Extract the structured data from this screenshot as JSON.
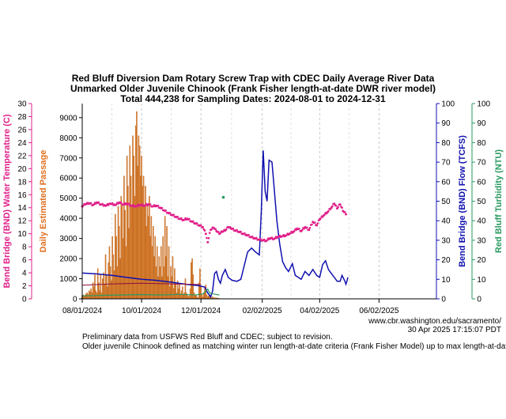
{
  "chart_data": {
    "type": "bar",
    "title": [
      "Red Bluff Diversion Dam Rotary Screw Trap with CDEC Daily Average River Data",
      "Unmarked Older Juvenile Chinook (Frank Fisher length-at-date DWR river model)",
      "Total 444,238 for Sampling Dates: 2024-08-01 to 2024-12-31"
    ],
    "x_tick_labels": [
      "08/01/2024",
      "10/01/2024",
      "12/01/2024",
      "02/02/2025",
      "04/02/2025",
      "06/02/2025"
    ],
    "x_range": [
      "2024-08-01",
      "2025-07-31"
    ],
    "axes": {
      "temperature": {
        "label": "Bend Bridge (BND) Water Temperature (C)",
        "range": [
          0,
          30
        ],
        "ticks": [
          0,
          2,
          4,
          6,
          8,
          10,
          12,
          14,
          16,
          18,
          20,
          22,
          24,
          26,
          28,
          30
        ],
        "color": "#e0208a"
      },
      "passage": {
        "label": "Daily Estimated Passage",
        "range": [
          0,
          9700
        ],
        "ticks": [
          0,
          1000,
          2000,
          3000,
          4000,
          5000,
          6000,
          7000,
          8000,
          9000
        ],
        "color": "#e07020"
      },
      "flow": {
        "label": "Bend Bridge (BND) Flow (TCFS)",
        "range": [
          0,
          100
        ],
        "ticks": [
          0,
          10,
          20,
          30,
          40,
          50,
          60,
          70,
          80,
          90,
          100
        ],
        "color": "#1010b0"
      },
      "turbidity": {
        "label": "Red Bluff Turbidity (NTU)",
        "range": [
          0,
          100
        ],
        "ticks": [
          0,
          10,
          20,
          30,
          40,
          50,
          60,
          70,
          80,
          90,
          100
        ],
        "color": "#2a9a60"
      }
    },
    "grid": true,
    "series": [
      {
        "name": "Daily Estimated Passage",
        "kind": "bar",
        "axis": "passage",
        "start_date": "2024-08-01",
        "values": [
          150,
          200,
          120,
          180,
          250,
          300,
          220,
          400,
          350,
          500,
          300,
          800,
          600,
          1200,
          400,
          300,
          1500,
          800,
          400,
          1200,
          300,
          1000,
          1300,
          700,
          2200,
          1200,
          600,
          1800,
          2600,
          1600,
          900,
          3100,
          2200,
          1400,
          4200,
          3100,
          1600,
          4600,
          3600,
          2000,
          5100,
          4700,
          3000,
          6100,
          4400,
          2600,
          7100,
          5600,
          3500,
          7600,
          6100,
          4600,
          8100,
          7100,
          5100,
          8600,
          9300,
          6600,
          8100,
          7600,
          6100,
          7100,
          5600,
          6100,
          4600,
          5600,
          3600,
          4600,
          4100,
          5100,
          3100,
          4100,
          2600,
          3600,
          2100,
          3100,
          1600,
          2600,
          1100,
          2100,
          1600,
          2600,
          1100,
          3100,
          1600,
          4100,
          2100,
          3600,
          1100,
          2600,
          600,
          1600,
          1100,
          2100,
          500,
          1500,
          800,
          300,
          900,
          500,
          700,
          250,
          400,
          600,
          200,
          300,
          1000,
          300,
          200,
          100,
          150,
          500,
          1800,
          2000,
          1200,
          300,
          150,
          200,
          100,
          50,
          800,
          1500,
          600,
          200,
          100,
          300,
          600,
          700,
          200,
          100,
          150,
          200,
          100,
          50,
          100,
          50,
          50,
          50,
          50,
          30,
          30,
          20,
          10
        ]
      },
      {
        "name": "Bend Bridge (BND) Water Temperature (C)",
        "kind": "points",
        "axis": "temperature",
        "points": [
          [
            "2024-08-01",
            14.2
          ],
          [
            "2024-08-04",
            14.5
          ],
          [
            "2024-08-08",
            14.7
          ],
          [
            "2024-08-12",
            14.4
          ],
          [
            "2024-08-16",
            14.8
          ],
          [
            "2024-08-20",
            14.5
          ],
          [
            "2024-08-25",
            14.3
          ],
          [
            "2024-08-30",
            14.6
          ],
          [
            "2024-09-04",
            14.4
          ],
          [
            "2024-09-08",
            14.8
          ],
          [
            "2024-09-12",
            14.5
          ],
          [
            "2024-09-16",
            14.6
          ],
          [
            "2024-09-20",
            14.3
          ],
          [
            "2024-09-25",
            14.2
          ],
          [
            "2024-09-30",
            14.4
          ],
          [
            "2024-10-04",
            14.3
          ],
          [
            "2024-10-08",
            14.5
          ],
          [
            "2024-10-12",
            14.2
          ],
          [
            "2024-10-16",
            14.3
          ],
          [
            "2024-10-20",
            14.0
          ],
          [
            "2024-10-24",
            13.6
          ],
          [
            "2024-10-28",
            13.2
          ],
          [
            "2024-11-01",
            12.9
          ],
          [
            "2024-11-05",
            12.6
          ],
          [
            "2024-11-09",
            12.3
          ],
          [
            "2024-11-13",
            12.1
          ],
          [
            "2024-11-17",
            12.3
          ],
          [
            "2024-11-21",
            11.9
          ],
          [
            "2024-11-25",
            11.6
          ],
          [
            "2024-11-29",
            11.3
          ],
          [
            "2024-12-03",
            11.0
          ],
          [
            "2024-12-06",
            10.0
          ],
          [
            "2024-12-08",
            8.7
          ],
          [
            "2024-12-11",
            10.6
          ],
          [
            "2024-12-14",
            10.9
          ],
          [
            "2024-12-17",
            10.4
          ],
          [
            "2024-12-20",
            10.0
          ],
          [
            "2024-12-23",
            10.3
          ],
          [
            "2024-12-26",
            10.5
          ],
          [
            "2024-12-29",
            11.0
          ],
          [
            "2025-01-01",
            10.8
          ],
          [
            "2025-01-05",
            10.5
          ],
          [
            "2025-01-09",
            10.3
          ],
          [
            "2025-01-13",
            10.0
          ],
          [
            "2025-01-17",
            9.8
          ],
          [
            "2025-01-21",
            9.5
          ],
          [
            "2025-01-25",
            9.3
          ],
          [
            "2025-01-29",
            9.1
          ],
          [
            "2025-02-02",
            9.0
          ],
          [
            "2025-02-06",
            8.9
          ],
          [
            "2025-02-10",
            9.3
          ],
          [
            "2025-02-14",
            9.2
          ],
          [
            "2025-02-18",
            9.5
          ],
          [
            "2025-02-22",
            9.6
          ],
          [
            "2025-02-26",
            9.7
          ],
          [
            "2025-03-02",
            10.0
          ],
          [
            "2025-03-06",
            10.3
          ],
          [
            "2025-03-10",
            10.8
          ],
          [
            "2025-03-14",
            10.4
          ],
          [
            "2025-03-18",
            11.0
          ],
          [
            "2025-03-22",
            10.6
          ],
          [
            "2025-03-26",
            11.8
          ],
          [
            "2025-03-30",
            11.3
          ],
          [
            "2025-04-02",
            12.2
          ],
          [
            "2025-04-06",
            12.8
          ],
          [
            "2025-04-10",
            13.3
          ],
          [
            "2025-04-14",
            14.0
          ],
          [
            "2025-04-17",
            14.6
          ],
          [
            "2025-04-20",
            13.9
          ],
          [
            "2025-04-23",
            14.5
          ],
          [
            "2025-04-26",
            13.5
          ],
          [
            "2025-04-29",
            13.0
          ]
        ]
      },
      {
        "name": "Bend Bridge (BND) Flow (TCFS)",
        "kind": "line",
        "axis": "flow",
        "points": [
          [
            "2024-08-01",
            13.2
          ],
          [
            "2024-08-15",
            12.8
          ],
          [
            "2024-09-01",
            12.0
          ],
          [
            "2024-09-15",
            11.0
          ],
          [
            "2024-10-01",
            10.0
          ],
          [
            "2024-10-15",
            9.5
          ],
          [
            "2024-11-01",
            8.5
          ],
          [
            "2024-11-15",
            7.5
          ],
          [
            "2024-11-28",
            6.8
          ],
          [
            "2024-12-05",
            6.0
          ],
          [
            "2024-12-08",
            3.0
          ],
          [
            "2024-12-11",
            1.0
          ],
          [
            "2024-12-13",
            4.0
          ],
          [
            "2024-12-15",
            13.0
          ],
          [
            "2024-12-17",
            14.0
          ],
          [
            "2024-12-19",
            10.0
          ],
          [
            "2024-12-21",
            8.0
          ],
          [
            "2024-12-23",
            12.0
          ],
          [
            "2024-12-26",
            15.0
          ],
          [
            "2024-12-29",
            11.0
          ],
          [
            "2025-01-02",
            9.5
          ],
          [
            "2025-01-07",
            9.0
          ],
          [
            "2025-01-11",
            10.0
          ],
          [
            "2025-01-14",
            16.0
          ],
          [
            "2025-01-18",
            24.0
          ],
          [
            "2025-01-22",
            26.0
          ],
          [
            "2025-01-26",
            24.0
          ],
          [
            "2025-01-30",
            22.5
          ],
          [
            "2025-02-01",
            45.0
          ],
          [
            "2025-02-03",
            76.0
          ],
          [
            "2025-02-05",
            55.0
          ],
          [
            "2025-02-07",
            50.0
          ],
          [
            "2025-02-09",
            71.0
          ],
          [
            "2025-02-12",
            70.0
          ],
          [
            "2025-02-14",
            58.0
          ],
          [
            "2025-02-17",
            40.0
          ],
          [
            "2025-02-20",
            28.0
          ],
          [
            "2025-02-23",
            19.0
          ],
          [
            "2025-02-26",
            16.0
          ],
          [
            "2025-03-01",
            14.0
          ],
          [
            "2025-03-05",
            18.0
          ],
          [
            "2025-03-08",
            12.0
          ],
          [
            "2025-03-11",
            11.0
          ],
          [
            "2025-03-14",
            10.0
          ],
          [
            "2025-03-18",
            14.0
          ],
          [
            "2025-03-22",
            12.0
          ],
          [
            "2025-03-26",
            15.0
          ],
          [
            "2025-03-30",
            12.0
          ],
          [
            "2025-04-02",
            11.0
          ],
          [
            "2025-04-05",
            17.5
          ],
          [
            "2025-04-08",
            19.5
          ],
          [
            "2025-04-11",
            15.0
          ],
          [
            "2025-04-14",
            13.0
          ],
          [
            "2025-04-17",
            11.0
          ],
          [
            "2025-04-20",
            9.0
          ],
          [
            "2025-04-23",
            9.0
          ],
          [
            "2025-04-25",
            12.0
          ],
          [
            "2025-04-28",
            9.0
          ],
          [
            "2025-04-29",
            7.5
          ],
          [
            "2025-04-30",
            9.0
          ],
          [
            "2025-05-01",
            11.0
          ]
        ]
      },
      {
        "name": "Red Bluff Turbidity (NTU)",
        "kind": "line",
        "axis": "turbidity",
        "points": [
          [
            "2024-08-01",
            1.5
          ],
          [
            "2024-08-20",
            1.8
          ],
          [
            "2024-09-10",
            2.0
          ],
          [
            "2024-09-30",
            2.2
          ],
          [
            "2024-10-20",
            2.0
          ],
          [
            "2024-11-10",
            2.3
          ],
          [
            "2024-11-25",
            2.0
          ],
          [
            "2024-12-03",
            2.5
          ],
          [
            "2024-12-08",
            5.0
          ],
          [
            "2024-12-10",
            3.0
          ],
          [
            "2024-12-14",
            2.5
          ],
          [
            "2024-12-20",
            2.0
          ]
        ]
      },
      {
        "name": "Temperature (secondary)",
        "kind": "line",
        "axis": "temperature",
        "points": [
          [
            "2024-08-01",
            2.1
          ],
          [
            "2024-09-01",
            2.3
          ],
          [
            "2024-10-01",
            2.4
          ],
          [
            "2024-11-01",
            2.3
          ],
          [
            "2024-12-01",
            2.2
          ]
        ]
      },
      {
        "name": "Turbidity spike",
        "kind": "point",
        "axis": "turbidity",
        "points": [
          [
            "2024-12-24",
            52.0
          ]
        ]
      }
    ]
  },
  "footer": {
    "note_1": "Preliminary data from USFWS Red Bluff and CDEC; subject to revision.",
    "note_2": "Older juvenile Chinook defined as matching winter run length-at-date criteria (Frank Fisher Model) up to max length-at-date size.",
    "credit_url": "www.cbr.washington.edu/sacramento/",
    "credit_time": "30 Apr 2025 17:15:07 PDT"
  },
  "colors": {
    "bar_fill": "#e08a3c",
    "bar_stroke": "#b85a10",
    "temp": "#e0208a",
    "flow": "#1010b0",
    "turbidity": "#2a9a60",
    "secondary": "#8a1040"
  }
}
